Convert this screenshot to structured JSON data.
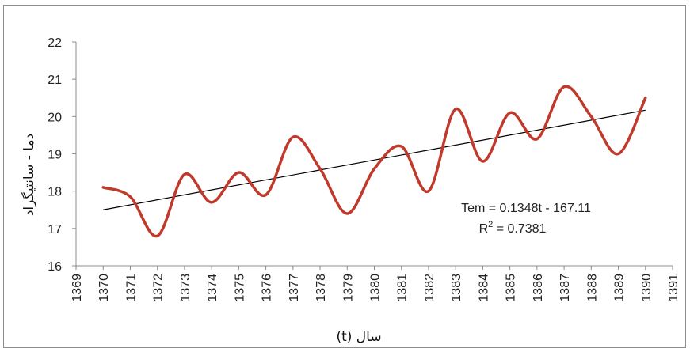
{
  "chart_data": {
    "type": "line",
    "title": "",
    "xlabel": "سال (t)",
    "ylabel": "دما - سانتیگراد",
    "xlim": [
      1369,
      1391
    ],
    "ylim": [
      16,
      22
    ],
    "x_ticks": [
      "1369",
      "1370",
      "1371",
      "1372",
      "1373",
      "1374",
      "1375",
      "1376",
      "1377",
      "1378",
      "1379",
      "1380",
      "1381",
      "1382",
      "1383",
      "1384",
      "1385",
      "1386",
      "1387",
      "1388",
      "1389",
      "1390",
      "1391"
    ],
    "y_ticks": [
      "16",
      "17",
      "18",
      "19",
      "20",
      "21",
      "22"
    ],
    "grid": false,
    "series": [
      {
        "color": "#c0392b",
        "x": [
          1370,
          1371,
          1372,
          1373,
          1374,
          1375,
          1376,
          1377,
          1378,
          1379,
          1380,
          1381,
          1382,
          1383,
          1384,
          1385,
          1386,
          1387,
          1388,
          1389,
          1390
        ],
        "y": [
          18.1,
          17.85,
          16.8,
          18.45,
          17.7,
          18.5,
          17.9,
          19.45,
          18.6,
          17.4,
          18.6,
          19.2,
          18.0,
          20.2,
          18.8,
          20.1,
          19.4,
          20.8,
          20.0,
          19.0,
          20.5
        ]
      }
    ],
    "trendline": {
      "color": "#000000",
      "x": [
        1370,
        1390
      ],
      "y": [
        17.5,
        20.17
      ]
    },
    "annotations": {
      "equation": "Tem = 0.1348t - 167.11",
      "r2_prefix": "R",
      "r2_sup": "2",
      "r2_value": " = 0.7381"
    }
  }
}
